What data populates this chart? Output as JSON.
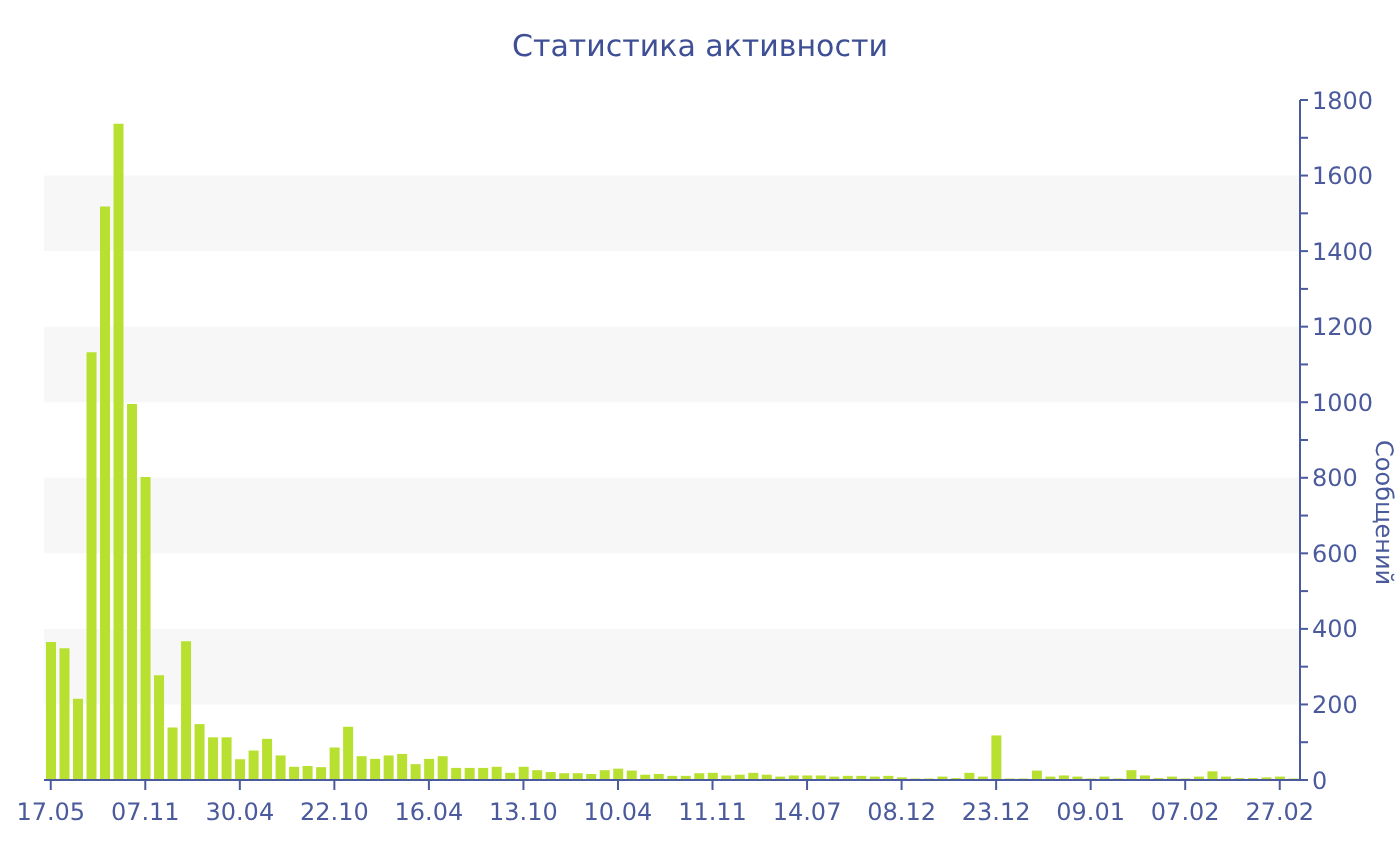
{
  "chart_data": {
    "type": "bar",
    "title": "Статистика активности",
    "ylabel": "Сообщений",
    "categories": [
      "17.05",
      null,
      null,
      null,
      null,
      null,
      null,
      "07.11",
      null,
      null,
      null,
      null,
      null,
      null,
      "30.04",
      null,
      null,
      null,
      null,
      null,
      null,
      "22.10",
      null,
      null,
      null,
      null,
      null,
      null,
      "16.04",
      null,
      null,
      null,
      null,
      null,
      null,
      "13.10",
      null,
      null,
      null,
      null,
      null,
      null,
      "10.04",
      null,
      null,
      null,
      null,
      null,
      null,
      "11.11",
      null,
      null,
      null,
      null,
      null,
      null,
      "14.07",
      null,
      null,
      null,
      null,
      null,
      null,
      "08.12",
      null,
      null,
      null,
      null,
      null,
      null,
      "23.12",
      null,
      null,
      null,
      null,
      null,
      null,
      "09.01",
      null,
      null,
      null,
      null,
      null,
      null,
      "07.02",
      null,
      null,
      null,
      null,
      null,
      null,
      "27.02",
      null
    ],
    "values": [
      365,
      349,
      215,
      1132,
      1518,
      1737,
      995,
      802,
      277,
      139,
      367,
      148,
      113,
      113,
      55,
      78,
      109,
      65,
      35,
      37,
      34,
      86,
      141,
      63,
      56,
      65,
      69,
      42,
      56,
      63,
      32,
      32,
      32,
      35,
      19,
      35,
      26,
      21,
      18,
      18,
      16,
      26,
      30,
      25,
      14,
      16,
      11,
      11,
      18,
      19,
      12,
      14,
      19,
      14,
      9,
      12,
      12,
      12,
      9,
      11,
      11,
      9,
      11,
      7,
      4,
      4,
      9,
      5,
      19,
      9,
      118,
      4,
      4,
      25,
      9,
      12,
      9,
      4,
      9,
      4,
      26,
      12,
      5,
      9,
      4,
      9,
      23,
      9,
      5,
      5,
      7,
      9,
      4
    ],
    "color": "#b8e030",
    "ylim": [
      0,
      1800
    ],
    "yticks": [
      0,
      {
        "value": 100,
        "label": null
      },
      200,
      {
        "value": 300,
        "label": null
      },
      400,
      {
        "value": 500,
        "label": null
      },
      600,
      {
        "value": 700,
        "label": null
      },
      800,
      {
        "value": 900,
        "label": null
      },
      1000,
      {
        "value": 1100,
        "label": null
      },
      1200,
      {
        "value": 1300,
        "label": null
      },
      1400,
      {
        "value": 1500,
        "label": null
      },
      1600,
      {
        "value": 1700,
        "label": null
      },
      1800
    ],
    "bands": [
      {
        "axis": "y",
        "from": 200,
        "to": 400,
        "color": "#f7f7f7"
      },
      {
        "axis": "y",
        "from": 600,
        "to": 800,
        "color": "#f7f7f7"
      },
      {
        "axis": "y",
        "from": 1000,
        "to": 1200,
        "color": "#f7f7f7"
      },
      {
        "axis": "y",
        "from": 1400,
        "to": 1600,
        "color": "#f7f7f7"
      }
    ],
    "grid": false,
    "legend": false
  }
}
